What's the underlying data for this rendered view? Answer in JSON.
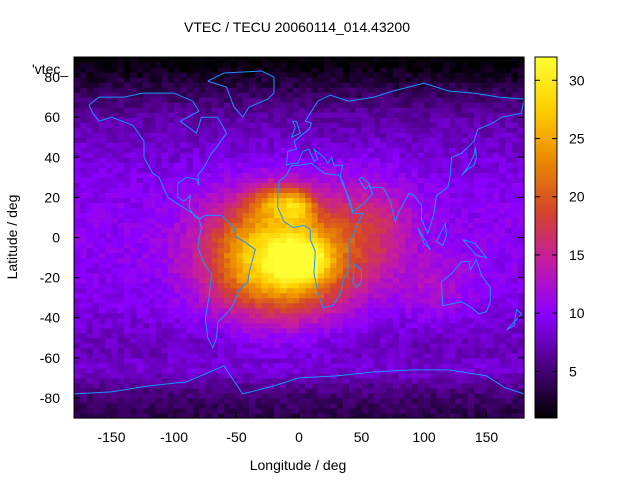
{
  "chart_data": {
    "type": "heatmap",
    "title": "VTEC / TECU 20060114_014.43200",
    "xlabel": "Longitude / deg",
    "ylabel": "Latitude / deg",
    "series_key": "'vtec_",
    "xlim": [
      -180,
      180
    ],
    "ylim": [
      -90,
      90
    ],
    "xticks": [
      -150,
      -100,
      -50,
      0,
      50,
      100,
      150
    ],
    "yticks": [
      -80,
      -60,
      -40,
      -20,
      0,
      20,
      40,
      60,
      80
    ],
    "colorbar": {
      "range": [
        1,
        32
      ],
      "ticks": [
        5,
        10,
        15,
        20,
        25,
        30
      ],
      "palette": [
        "#000000",
        "#4b007f",
        "#8a00ff",
        "#c41aa6",
        "#d4442a",
        "#ea8a00",
        "#ffd000",
        "#ffff33"
      ]
    },
    "colors": {
      "coastline": "#1e90ff"
    },
    "grid": {
      "resolution_lon_deg": 5,
      "resolution_lat_deg": 2.5
    },
    "sources": [
      {
        "lon": -15,
        "lat": -10,
        "peak": 22,
        "s_lon": 55,
        "s_lat": 28
      },
      {
        "lon": 5,
        "lat": -12,
        "peak": 9,
        "s_lon": 18,
        "s_lat": 10
      },
      {
        "lon": -18,
        "lat": 18,
        "peak": 8,
        "s_lon": 22,
        "s_lat": 8
      },
      {
        "lon": 0,
        "lat": 16,
        "peak": 6,
        "s_lon": 12,
        "s_lat": 8
      },
      {
        "lon": 60,
        "lat": 5,
        "peak": 5,
        "s_lon": 30,
        "s_lat": 25
      },
      {
        "lon": 110,
        "lat": -25,
        "peak": 3,
        "s_lon": 30,
        "s_lat": 15
      }
    ],
    "base": {
      "equator": 10,
      "pole": 3.5,
      "antarctic_band_lat": -65,
      "antarctic_band_value": 9.5
    }
  }
}
